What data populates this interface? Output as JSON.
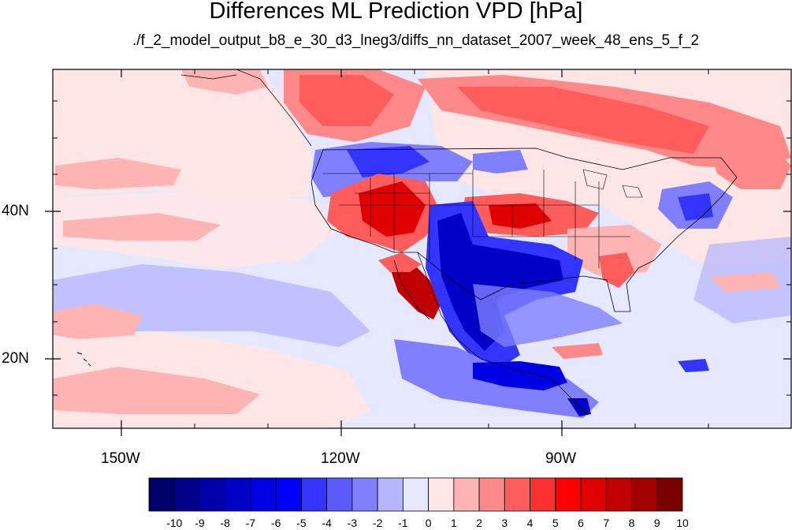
{
  "title": "Differences ML Prediction VPD [hPa]",
  "subtitle": "./f_2_model_output_b8_e_30_d3_lneg3/diffs_nn_dataset_2007_week_48_ens_5_f_2",
  "axes": {
    "x_ticks": [
      "150W",
      "120W",
      "90W"
    ],
    "y_ticks": [
      "40N",
      "20N"
    ]
  },
  "colorbar": {
    "labels": [
      "-10",
      "-9",
      "-8",
      "-7",
      "-6",
      "-5",
      "-4",
      "-3",
      "-2",
      "-1",
      "0",
      "1",
      "2",
      "3",
      "4",
      "5",
      "6",
      "7",
      "8",
      "9",
      "10"
    ],
    "colors": [
      "#00006a",
      "#000089",
      "#0000a8",
      "#0000c6",
      "#0000e4",
      "#0000ff",
      "#3434ff",
      "#5a5aff",
      "#8080ff",
      "#b4b4ff",
      "#e6e8ff",
      "#ffe6e6",
      "#ffb4b4",
      "#ff8888",
      "#ff5c5c",
      "#ff3030",
      "#ff0000",
      "#e00000",
      "#c00000",
      "#a00000",
      "#7a0000"
    ]
  },
  "map_features": {
    "blobs": [
      {
        "name": "sw-us-red",
        "level": 5
      },
      {
        "name": "baja-dark-red",
        "level": 8
      },
      {
        "name": "mexico-texas-dark-blue",
        "level": -6
      },
      {
        "name": "canada-red",
        "level": 4
      },
      {
        "name": "plains-red",
        "level": 5
      },
      {
        "name": "pacific-nw-blue",
        "level": -4
      },
      {
        "name": "northeast-blue",
        "level": -4
      },
      {
        "name": "florida-red",
        "level": 3
      },
      {
        "name": "central-america-blue",
        "level": -5
      },
      {
        "name": "pacific-south-blue",
        "level": -2
      },
      {
        "name": "pacific-south-red",
        "level": 2
      }
    ]
  }
}
